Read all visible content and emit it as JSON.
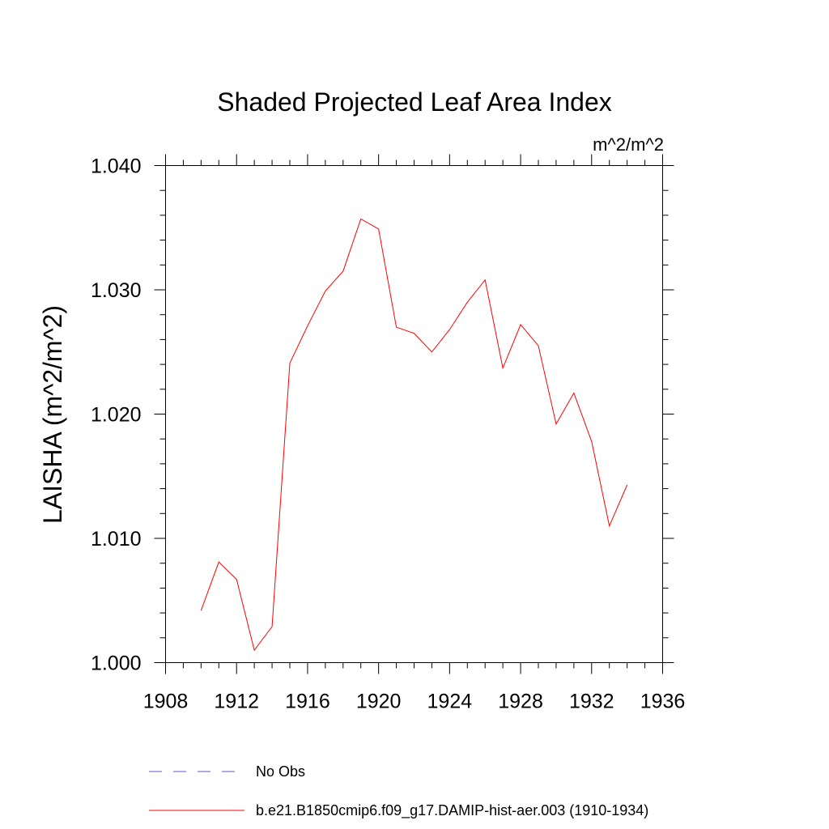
{
  "chart_data": {
    "type": "line",
    "title": "Shaded Projected Leaf Area Index",
    "units": "m^2/m^2",
    "ylabel": "LAISHA  (m^2/m^2)",
    "xlabel": "",
    "xlim": [
      1908,
      1936
    ],
    "ylim": [
      1.0,
      1.04
    ],
    "x_ticks": [
      "1908",
      "1912",
      "1916",
      "1920",
      "1924",
      "1928",
      "1932",
      "1936"
    ],
    "y_ticks": [
      "1.000",
      "1.010",
      "1.020",
      "1.030",
      "1.040"
    ],
    "grid": false,
    "legend_position": "bottom",
    "series": [
      {
        "name": "No Obs",
        "color": "#5a5acc",
        "dash": "dashed",
        "x": [],
        "y": []
      },
      {
        "name": "b.e21.B1850cmip6.f09_g17.DAMIP-hist-aer.003 (1910-1934)",
        "color": "#ff0000",
        "dash": "solid",
        "x": [
          1910,
          1911,
          1912,
          1913,
          1914,
          1915,
          1916,
          1917,
          1918,
          1919,
          1920,
          1921,
          1922,
          1923,
          1924,
          1925,
          1926,
          1927,
          1928,
          1929,
          1930,
          1931,
          1932,
          1933,
          1934
        ],
        "y": [
          1.0042,
          1.0081,
          1.0067,
          1.001,
          1.0029,
          1.0241,
          1.0271,
          1.0299,
          1.0315,
          1.0357,
          1.0349,
          1.027,
          1.0265,
          1.025,
          1.0268,
          1.029,
          1.0308,
          1.0237,
          1.0272,
          1.0255,
          1.0192,
          1.0217,
          1.0178,
          1.011,
          1.0143
        ]
      }
    ]
  }
}
